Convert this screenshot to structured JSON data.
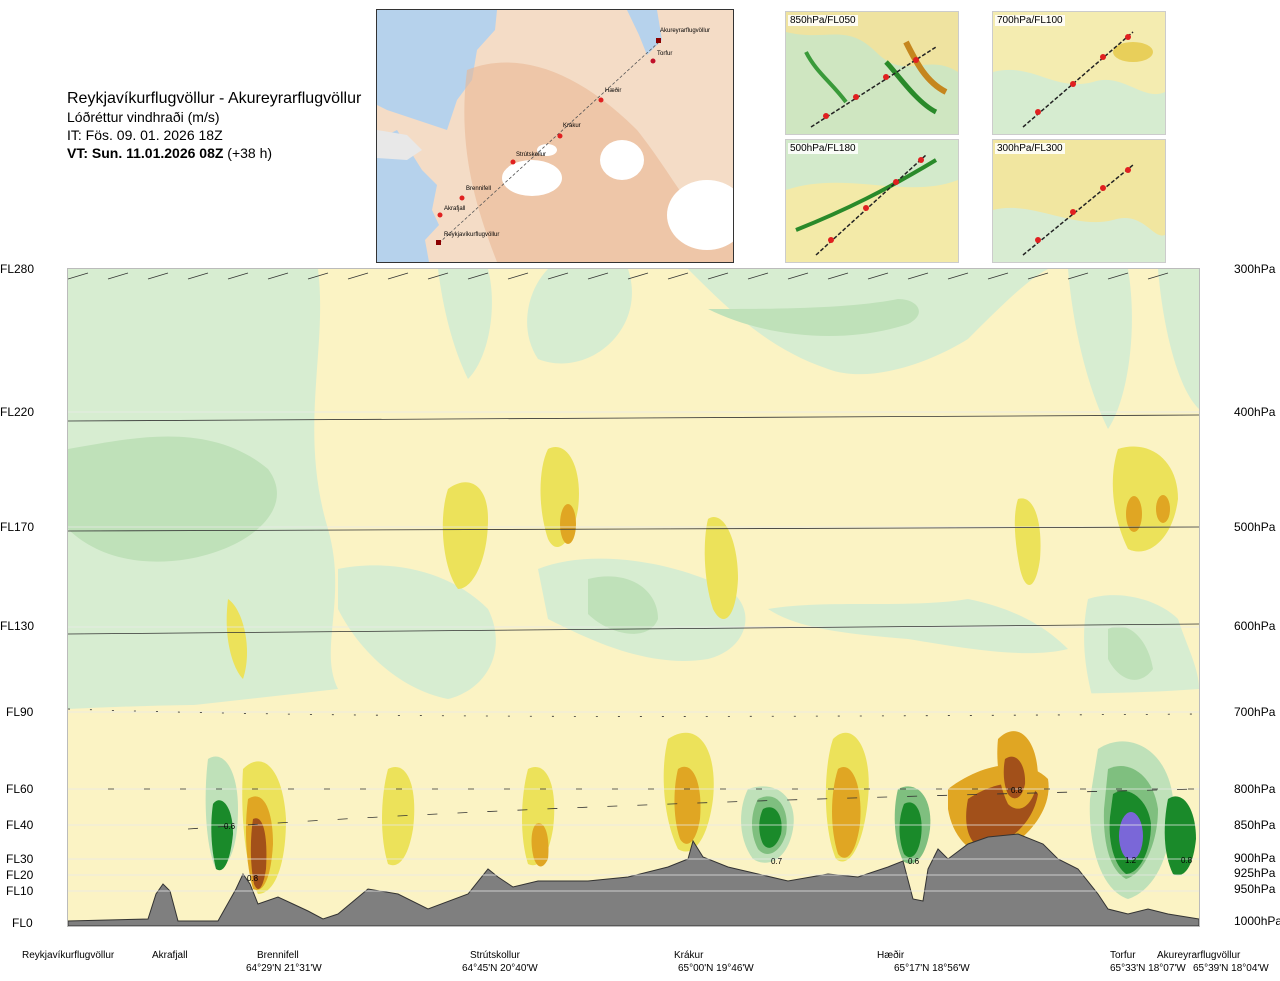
{
  "title": {
    "route": "Reykjavíkurflugvöllur - Akureyrarflugvöllur",
    "variable": "Lóðréttur vindhraði (m/s)",
    "issue_time": "IT: Fös. 09. 01. 2026 18Z",
    "valid_time": "VT: Sun. 11.01.2026 08Z",
    "lead": " (+38 h)"
  },
  "map": {
    "waypoints": [
      "Akureyrarflugvöllur",
      "Torfur",
      "Hæðir",
      "Krákur",
      "Strútskollur",
      "Brennifell",
      "Akrafjall",
      "Reykjavíkurflugvöllur"
    ]
  },
  "mini_maps": [
    "850hPa/FL050",
    "700hPa/FL100",
    "500hPa/FL180",
    "300hPa/FL300"
  ],
  "levels": [
    {
      "fl": "FL280",
      "hpa": "300hPa"
    },
    {
      "fl": "FL220",
      "hpa": "400hPa"
    },
    {
      "fl": "FL170",
      "hpa": "500hPa"
    },
    {
      "fl": "FL130",
      "hpa": "600hPa"
    },
    {
      "fl": "FL90",
      "hpa": "700hPa"
    },
    {
      "fl": "FL60",
      "hpa": "800hPa"
    },
    {
      "fl": "FL40",
      "hpa": "850hPa"
    },
    {
      "fl": "FL30",
      "hpa": "900hPa"
    },
    {
      "fl": "FL20",
      "hpa": "925hPa"
    },
    {
      "fl": "FL10",
      "hpa": "950hPa"
    },
    {
      "fl": "FL0",
      "hpa": "1000hPa"
    }
  ],
  "cell_labels": [
    "0.6",
    "0.8",
    "0.7",
    "0.6",
    "0.8",
    "1.2",
    "0.8"
  ],
  "locations": [
    {
      "name": "Reykjavíkurflugvöllur",
      "coord": ""
    },
    {
      "name": "Akrafjall",
      "coord": ""
    },
    {
      "name": "Brennifell",
      "coord": "64°29'N 21°31'W"
    },
    {
      "name": "Strútskollur",
      "coord": "64°45'N 20°40'W"
    },
    {
      "name": "Krákur",
      "coord": "65°00'N 19°46'W"
    },
    {
      "name": "Hæðir",
      "coord": "65°17'N 18°56'W"
    },
    {
      "name": "Torfur",
      "coord": "65°33'N 18°07'W"
    },
    {
      "name": "Akureyrarflugvöllur",
      "coord": "65°39'N 18°04'W"
    }
  ],
  "colors": {
    "strong_up": "#1a8a2a",
    "moderate_up": "#7fbf7f",
    "weak_up": "#cfe9c9",
    "near_zero": "#f9f1c0",
    "weak_down": "#ece25a",
    "moderate_down": "#e0a623",
    "strong_down": "#a2501a",
    "terrain": "#7f7f7f",
    "extreme_up": "#7a67d8"
  }
}
